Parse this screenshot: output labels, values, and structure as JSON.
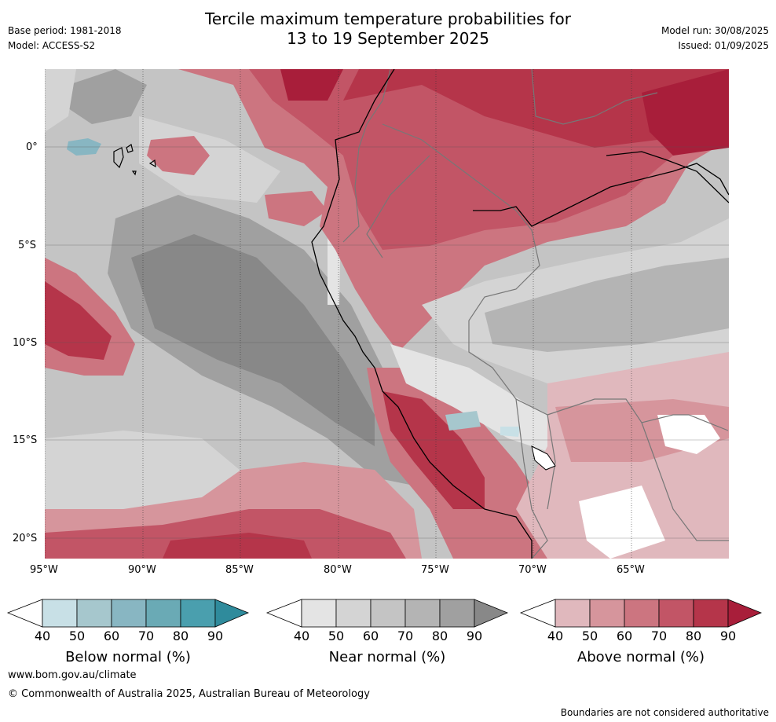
{
  "header": {
    "title_line1": "Tercile maximum temperature probabilities for",
    "title_line2": "13 to 19 September 2025",
    "base_period": "Base period: 1981-2018",
    "model": "Model: ACCESS-S2",
    "model_run": "Model run: 30/08/2025",
    "issued": "Issued: 01/09/2025"
  },
  "map": {
    "lat_labels": [
      "0°",
      "5°S",
      "10°S",
      "15°S",
      "20°S"
    ],
    "lon_labels": [
      "95°W",
      "90°W",
      "85°W",
      "80°W",
      "75°W",
      "70°W",
      "65°W"
    ],
    "colors": {
      "below": [
        "#c8e0e6",
        "#a6c7cd",
        "#88b6c2",
        "#6aaab5",
        "#4a9fae",
        "#2f8b9c"
      ],
      "near": [
        "#e4e4e4",
        "#d4d4d4",
        "#c4c4c4",
        "#b4b4b4",
        "#a0a0a0",
        "#888888"
      ],
      "above": [
        "#e0b8bd",
        "#d6959c",
        "#cc7580",
        "#c25566",
        "#b5354a",
        "#a81e3a"
      ]
    }
  },
  "legends": [
    {
      "id": "below",
      "label": "Below normal (%)",
      "ticks": [
        "40",
        "50",
        "60",
        "70",
        "80",
        "90"
      ]
    },
    {
      "id": "near",
      "label": "Near normal (%)",
      "ticks": [
        "40",
        "50",
        "60",
        "70",
        "80",
        "90"
      ]
    },
    {
      "id": "above",
      "label": "Above normal (%)",
      "ticks": [
        "40",
        "50",
        "60",
        "70",
        "80",
        "90"
      ]
    }
  ],
  "footer": {
    "website": "www.bom.gov.au/climate",
    "copyright": "© Commonwealth of Australia 2025, Australian Bureau of Meteorology",
    "disclaimer": "Boundaries are not considered authoritative"
  }
}
